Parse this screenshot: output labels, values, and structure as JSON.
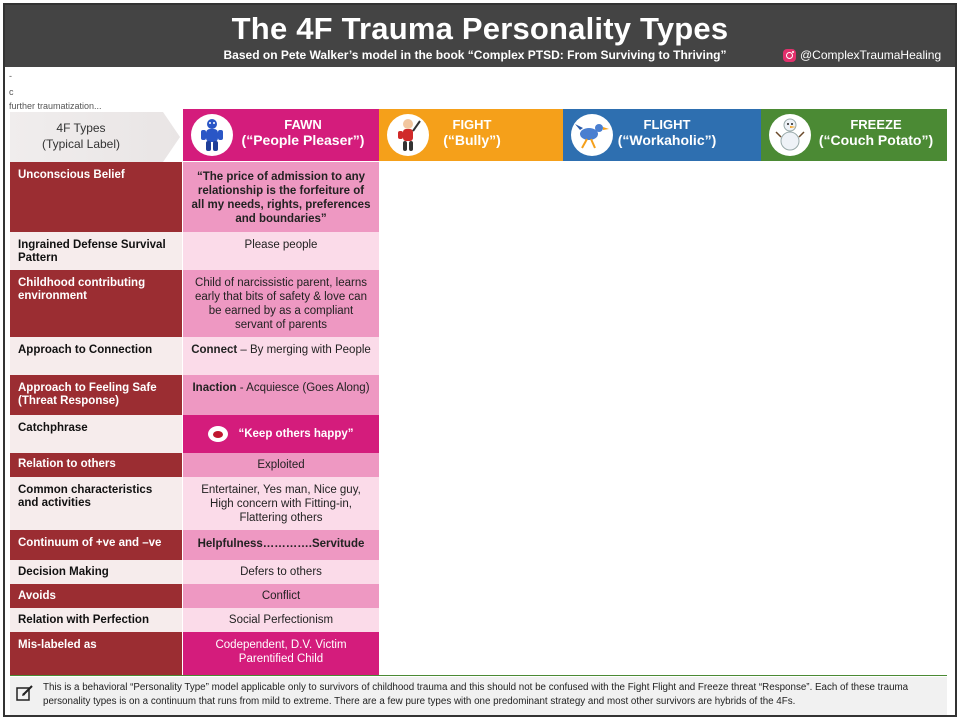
{
  "header": {
    "title": "The 4F Trauma Personality Types",
    "subtitle": "Based on Pete Walker’s model in the book “Complex PTSD: From Surviving to Thriving”",
    "handle": "@ComplexTraumaHealing",
    "handle_icon": "instagram-icon",
    "background": "#444444"
  },
  "scrap_text": [
    "-",
    "c",
    "further traumatization..."
  ],
  "type_label": {
    "line1": "4F Types",
    "line2": "(Typical Label)"
  },
  "types": [
    {
      "key": "fawn",
      "name": "FAWN",
      "alias": "(“People Pleaser”)",
      "color": "#d41c7c",
      "icon": "blue-figure-icon"
    },
    {
      "key": "fight",
      "name": "FIGHT",
      "alias": "(“Bully”)",
      "color": "#f5a01a",
      "icon": "fighter-icon"
    },
    {
      "key": "flight",
      "name": "FLIGHT",
      "alias": "(“Workaholic”)",
      "color": "#2e6fb0",
      "icon": "runner-bird-icon"
    },
    {
      "key": "freeze",
      "name": "FREEZE",
      "alias": "(“Couch Potato”)",
      "color": "#4b8a34",
      "icon": "snowman-icon"
    }
  ],
  "rows": [
    {
      "label": "Unconscious Belief",
      "value": "“The price of admission to any relationship is the forfeiture of all my needs, rights, preferences and boundaries”"
    },
    {
      "label": "Ingrained Defense Survival Pattern",
      "value": "Please people"
    },
    {
      "label": "Childhood  contributing environment",
      "value": "Child of narcissistic parent, learns early that bits of safety & love can be earned by as a compliant servant of parents"
    },
    {
      "label": "Approach to Connection",
      "value_bold": "Connect",
      "value": " – By  merging with People"
    },
    {
      "label": "Approach to Feeling Safe (Threat Response)",
      "value_bold": "Inaction",
      "value": " - Acquiesce (Goes Along)"
    },
    {
      "label": "Catchphrase",
      "value": "“Keep others happy”",
      "icon": "dog-face-icon"
    },
    {
      "label": "Relation  to others",
      "value": "Exploited"
    },
    {
      "label": "Common characteristics and activities",
      "value": "Entertainer, Yes man, Nice guy, High concern with Fitting-in, Flattering others"
    },
    {
      "label": "Continuum  of +ve and –ve",
      "value": "Helpfulness………….Servitude"
    },
    {
      "label": "Decision Making",
      "value": "Defers to others"
    },
    {
      "label": "Avoids",
      "value": "Conflict"
    },
    {
      "label": "Relation with Perfection",
      "value": "Social Perfectionism"
    },
    {
      "label": "Mis-labeled as",
      "value": "Codependent, D.V. Victim Parentified Child"
    }
  ],
  "footer": {
    "icon": "edit-note-icon",
    "text": "This is a behavioral “Personality Type” model applicable only to survivors of childhood trauma and this should not be confused with the Fight Flight and Freeze threat “Response”.  Each of these trauma personality types is on a continuum that runs from mild  to extreme. There are a few pure types with one predominant strategy and most other survivors are hybrids of the 4Fs."
  }
}
